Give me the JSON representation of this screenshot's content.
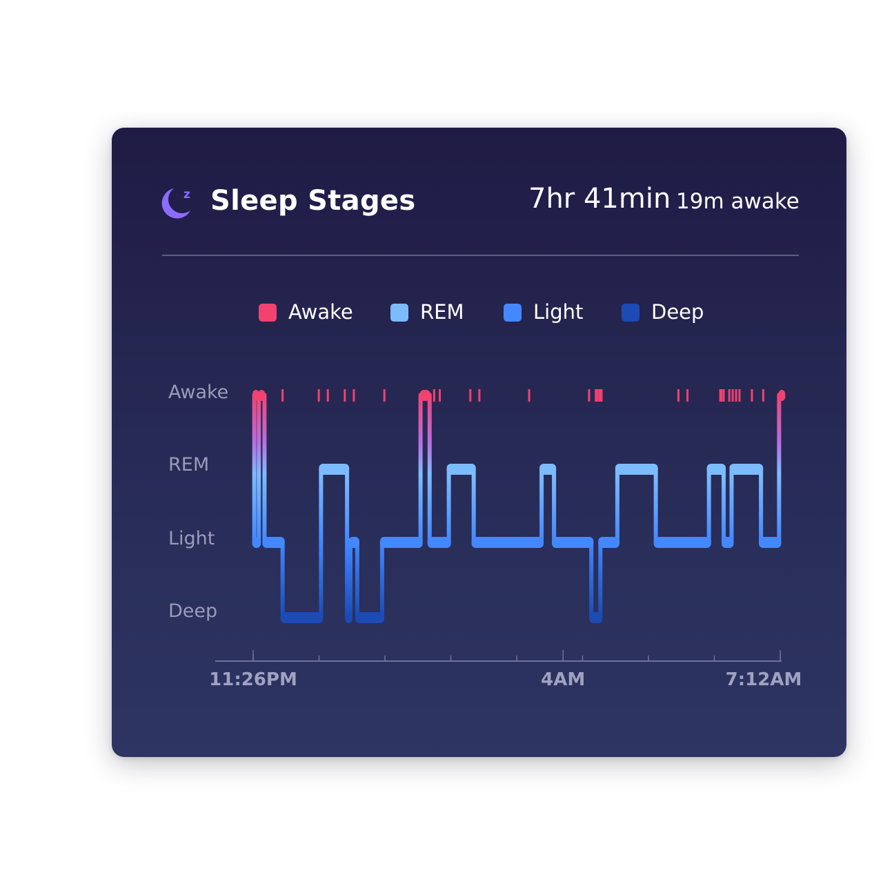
{
  "header": {
    "icon": "moon-zz-icon",
    "title": "Sleep Stages",
    "duration": "7hr 41min",
    "awake_summary": "19m awake"
  },
  "colors": {
    "awake": "#f24270",
    "rem": "#7dbbff",
    "light": "#4488ff",
    "deep": "#1b4bb3",
    "icon": "#8b6cff"
  },
  "legend": [
    {
      "key": "awake",
      "label": "Awake"
    },
    {
      "key": "rem",
      "label": "REM"
    },
    {
      "key": "light",
      "label": "Light"
    },
    {
      "key": "deep",
      "label": "Deep"
    }
  ],
  "chart_data": {
    "type": "step",
    "title": "Sleep Stages",
    "x_unit": "minutes since 11:26PM",
    "x_range": [
      0,
      466
    ],
    "stages": [
      "Awake",
      "REM",
      "Light",
      "Deep"
    ],
    "x_tick_labels": [
      {
        "label": "11:26PM",
        "t": 0
      },
      {
        "label": "4AM",
        "t": 274
      },
      {
        "label": "7:12AM",
        "t": 466
      }
    ],
    "segments": [
      {
        "stage": "Awake",
        "start": 0,
        "end": 1
      },
      {
        "stage": "Light",
        "start": 1,
        "end": 5
      },
      {
        "stage": "Awake",
        "start": 5,
        "end": 10
      },
      {
        "stage": "Light",
        "start": 10,
        "end": 26
      },
      {
        "stage": "Deep",
        "start": 26,
        "end": 60
      },
      {
        "stage": "REM",
        "start": 60,
        "end": 83
      },
      {
        "stage": "Deep",
        "start": 83,
        "end": 86
      },
      {
        "stage": "Light",
        "start": 86,
        "end": 92
      },
      {
        "stage": "Deep",
        "start": 92,
        "end": 114
      },
      {
        "stage": "Light",
        "start": 114,
        "end": 148
      },
      {
        "stage": "Awake",
        "start": 148,
        "end": 156
      },
      {
        "stage": "Light",
        "start": 156,
        "end": 173
      },
      {
        "stage": "REM",
        "start": 173,
        "end": 195
      },
      {
        "stage": "Light",
        "start": 195,
        "end": 255
      },
      {
        "stage": "REM",
        "start": 255,
        "end": 266
      },
      {
        "stage": "Light",
        "start": 266,
        "end": 299
      },
      {
        "stage": "Deep",
        "start": 299,
        "end": 307
      },
      {
        "stage": "Light",
        "start": 307,
        "end": 322
      },
      {
        "stage": "REM",
        "start": 322,
        "end": 356
      },
      {
        "stage": "Light",
        "start": 356,
        "end": 403
      },
      {
        "stage": "REM",
        "start": 403,
        "end": 416
      },
      {
        "stage": "Light",
        "start": 416,
        "end": 423
      },
      {
        "stage": "REM",
        "start": 423,
        "end": 449
      },
      {
        "stage": "Light",
        "start": 449,
        "end": 465
      },
      {
        "stage": "Awake",
        "start": 465,
        "end": 466
      }
    ],
    "awake_marks": [
      26,
      58,
      66,
      81,
      89,
      116,
      160,
      165,
      192,
      200,
      244,
      297,
      303,
      304,
      306,
      307,
      308,
      376,
      384,
      413,
      414,
      416,
      421,
      424,
      427,
      430,
      441,
      451
    ]
  }
}
